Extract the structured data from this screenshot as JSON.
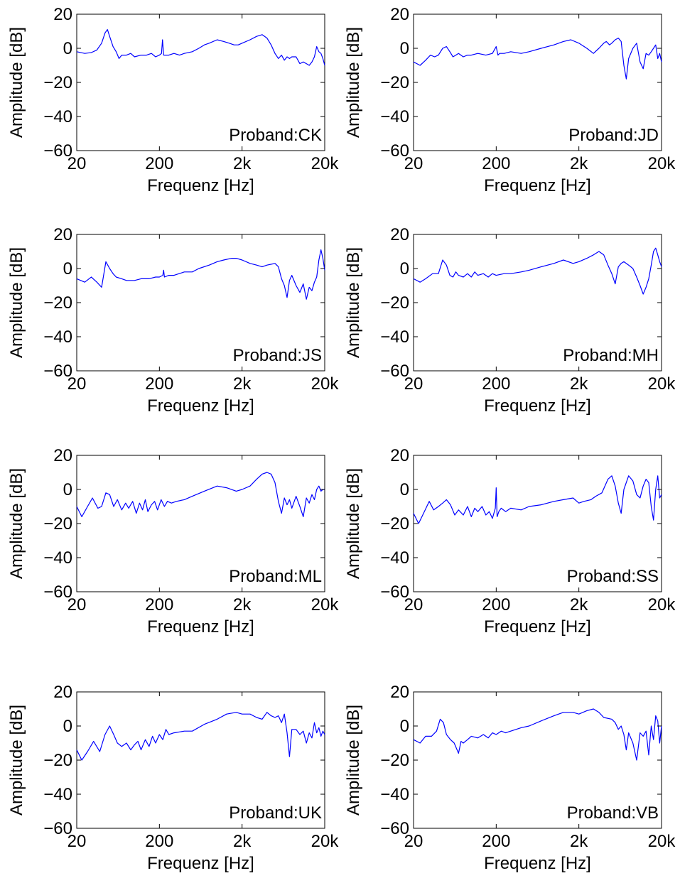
{
  "figure": {
    "line_color": "#0000ff",
    "axes_color": "#000000"
  },
  "chart_data": [
    {
      "type": "line",
      "annotation": "Proband:CK",
      "xlabel": "Frequenz [Hz]",
      "ylabel": "Amplitude [dB]",
      "xscale": "log",
      "xlim": [
        20,
        20000
      ],
      "ylim": [
        -60,
        20
      ],
      "xticks": [
        20,
        200,
        2000,
        20000
      ],
      "xticklabels": [
        "20",
        "200",
        "2k",
        "20k"
      ],
      "yticks": [
        20,
        0,
        -20,
        -40,
        -60
      ],
      "yticklabels": [
        "20",
        "0",
        "−20",
        "−40",
        "−60"
      ],
      "grid": false,
      "x": [
        20,
        25,
        30,
        35,
        40,
        44,
        47,
        50,
        55,
        60,
        65,
        70,
        80,
        90,
        100,
        120,
        140,
        160,
        180,
        200,
        212,
        218,
        225,
        260,
        300,
        350,
        400,
        500,
        600,
        700,
        800,
        1000,
        1200,
        1400,
        1600,
        1800,
        2000,
        2500,
        3000,
        3500,
        4000,
        4500,
        5000,
        5500,
        6000,
        6500,
        7000,
        7500,
        8000,
        9000,
        10000,
        11000,
        12000,
        13000,
        14000,
        15000,
        16000,
        17000,
        18000,
        19000,
        20000
      ],
      "y": [
        -2,
        -3,
        -2.5,
        -1,
        3,
        9,
        11,
        7,
        1,
        -2,
        -6,
        -4,
        -4,
        -3,
        -5,
        -4,
        -4,
        -3,
        -5,
        -4,
        -3,
        5,
        -4,
        -4,
        -3,
        -4,
        -3,
        -2,
        0,
        2,
        3,
        5,
        4,
        3,
        2,
        2,
        3,
        5,
        7,
        8,
        6,
        2,
        -3,
        -6,
        -4,
        -7,
        -5,
        -6,
        -5,
        -5,
        -9,
        -8,
        -9,
        -10,
        -8,
        -5,
        1,
        -2,
        -3,
        -6,
        -10
      ]
    },
    {
      "type": "line",
      "annotation": "Proband:JD",
      "xlabel": "Frequenz [Hz]",
      "ylabel": "Amplitude [dB]",
      "xscale": "log",
      "xlim": [
        20,
        20000
      ],
      "ylim": [
        -60,
        20
      ],
      "xticks": [
        20,
        200,
        2000,
        20000
      ],
      "xticklabels": [
        "20",
        "200",
        "2k",
        "20k"
      ],
      "yticks": [
        20,
        0,
        -20,
        -40,
        -60
      ],
      "yticklabels": [
        "20",
        "0",
        "−20",
        "−40",
        "−60"
      ],
      "grid": false,
      "x": [
        20,
        24,
        28,
        32,
        36,
        40,
        45,
        50,
        55,
        60,
        65,
        70,
        80,
        90,
        100,
        120,
        150,
        180,
        200,
        210,
        220,
        250,
        300,
        400,
        500,
        700,
        1000,
        1300,
        1600,
        2000,
        2500,
        3000,
        3500,
        4000,
        4300,
        4700,
        5000,
        5500,
        6000,
        6500,
        7000,
        7500,
        8000,
        9000,
        10000,
        11000,
        12000,
        13000,
        14000,
        15000,
        16000,
        17000,
        18000,
        19000,
        20000
      ],
      "y": [
        -8,
        -10,
        -7,
        -4,
        -5,
        -4,
        0,
        1,
        -2,
        -5,
        -4,
        -3,
        -5,
        -4,
        -4,
        -3,
        -4,
        -3,
        1,
        -4,
        -3,
        -3,
        -2,
        -3,
        -2,
        0,
        2,
        4,
        5,
        3,
        0,
        -3,
        0,
        3,
        4,
        2,
        3,
        5,
        6,
        4,
        -10,
        -18,
        -6,
        0,
        3,
        -8,
        -12,
        -3,
        -4,
        -2,
        0,
        2,
        -6,
        -3,
        -8
      ]
    },
    {
      "type": "line",
      "annotation": "Proband:JS",
      "xlabel": "Frequenz [Hz]",
      "ylabel": "Amplitude [dB]",
      "xscale": "log",
      "xlim": [
        20,
        20000
      ],
      "ylim": [
        -60,
        20
      ],
      "xticks": [
        20,
        200,
        2000,
        20000
      ],
      "xticklabels": [
        "20",
        "200",
        "2k",
        "20k"
      ],
      "yticks": [
        20,
        0,
        -20,
        -40,
        -60
      ],
      "yticklabels": [
        "20",
        "0",
        "−20",
        "−40",
        "−60"
      ],
      "grid": false,
      "x": [
        20,
        25,
        30,
        35,
        40,
        45,
        50,
        55,
        60,
        70,
        80,
        100,
        120,
        150,
        180,
        200,
        220,
        225,
        230,
        260,
        300,
        400,
        500,
        600,
        800,
        1000,
        1200,
        1500,
        1700,
        2000,
        2500,
        3000,
        3500,
        4000,
        5000,
        5500,
        6000,
        6500,
        7000,
        7500,
        8000,
        9000,
        10000,
        11000,
        12000,
        13000,
        14000,
        15000,
        16000,
        17000,
        18000,
        19000,
        20000
      ],
      "y": [
        -6,
        -8,
        -5,
        -8,
        -11,
        4,
        0,
        -3,
        -5,
        -6,
        -7,
        -7,
        -6,
        -6,
        -5,
        -5,
        -4,
        -1,
        -5,
        -4,
        -4,
        -2,
        -2,
        0,
        2,
        4,
        5,
        6,
        6,
        5,
        3,
        2,
        1,
        2,
        3,
        1,
        -6,
        -10,
        -17,
        -7,
        -4,
        -10,
        -14,
        -9,
        -18,
        -11,
        -13,
        -8,
        -5,
        5,
        11,
        6,
        -1
      ]
    },
    {
      "type": "line",
      "annotation": "Proband:MH",
      "xlabel": "Frequenz [Hz]",
      "ylabel": "Amplitude [dB]",
      "xscale": "log",
      "xlim": [
        20,
        20000
      ],
      "ylim": [
        -60,
        20
      ],
      "xticks": [
        20,
        200,
        2000,
        20000
      ],
      "xticklabels": [
        "20",
        "200",
        "2k",
        "20k"
      ],
      "yticks": [
        20,
        0,
        -20,
        -40,
        -60
      ],
      "yticklabels": [
        "20",
        "0",
        "−20",
        "−40",
        "−60"
      ],
      "grid": false,
      "x": [
        20,
        24,
        28,
        34,
        40,
        45,
        50,
        55,
        60,
        65,
        70,
        80,
        90,
        100,
        110,
        120,
        140,
        160,
        180,
        200,
        250,
        300,
        400,
        500,
        700,
        1000,
        1300,
        1700,
        2000,
        2500,
        3000,
        3500,
        4000,
        4500,
        5000,
        5500,
        6000,
        6500,
        7000,
        8000,
        9000,
        10000,
        11000,
        12000,
        13000,
        14000,
        15000,
        16000,
        17000,
        18000,
        19000,
        20000
      ],
      "y": [
        -6,
        -8,
        -6,
        -3,
        -3,
        5,
        2,
        -4,
        -5,
        -2,
        -4,
        -5,
        -3,
        -5,
        -2,
        -4,
        -3,
        -5,
        -3,
        -4,
        -3,
        -3,
        -2,
        -1,
        1,
        3,
        5,
        3,
        4,
        6,
        8,
        10,
        8,
        2,
        -3,
        -9,
        1,
        3,
        4,
        2,
        0,
        -5,
        -10,
        -15,
        -11,
        -6,
        2,
        10,
        12,
        8,
        4,
        1
      ]
    },
    {
      "type": "line",
      "annotation": "Proband:ML",
      "xlabel": "Frequenz [Hz]",
      "ylabel": "Amplitude [dB]",
      "xscale": "log",
      "xlim": [
        20,
        20000
      ],
      "ylim": [
        -60,
        20
      ],
      "xticks": [
        20,
        200,
        2000,
        20000
      ],
      "xticklabels": [
        "20",
        "200",
        "2k",
        "20k"
      ],
      "yticks": [
        20,
        0,
        -20,
        -40,
        -60
      ],
      "yticklabels": [
        "20",
        "0",
        "−20",
        "−40",
        "−60"
      ],
      "grid": false,
      "x": [
        20,
        23,
        27,
        31,
        36,
        40,
        45,
        50,
        56,
        62,
        70,
        78,
        85,
        95,
        105,
        115,
        125,
        135,
        145,
        160,
        175,
        190,
        210,
        230,
        250,
        280,
        320,
        400,
        500,
        700,
        1000,
        1300,
        1700,
        2000,
        2500,
        3000,
        3500,
        4000,
        4500,
        5000,
        5500,
        6000,
        6500,
        7000,
        7500,
        8000,
        9000,
        10000,
        11000,
        12000,
        13000,
        14000,
        15000,
        16000,
        17000,
        18000,
        19000,
        20000
      ],
      "y": [
        -10,
        -16,
        -10,
        -5,
        -11,
        -10,
        -2,
        -3,
        -10,
        -6,
        -12,
        -8,
        -11,
        -7,
        -14,
        -8,
        -12,
        -6,
        -13,
        -9,
        -7,
        -12,
        -6,
        -10,
        -7,
        -8,
        -7,
        -6,
        -4,
        -1,
        2,
        1,
        -1,
        0,
        2,
        6,
        9,
        10,
        9,
        4,
        -7,
        -14,
        -5,
        -9,
        -6,
        -11,
        -4,
        -10,
        -16,
        -5,
        -8,
        -3,
        -6,
        0,
        2,
        -1,
        0,
        0
      ]
    },
    {
      "type": "line",
      "annotation": "Proband:SS",
      "xlabel": "Frequenz [Hz]",
      "ylabel": "Amplitude [dB]",
      "xscale": "log",
      "xlim": [
        20,
        20000
      ],
      "ylim": [
        -60,
        20
      ],
      "xticks": [
        20,
        200,
        2000,
        20000
      ],
      "xticklabels": [
        "20",
        "200",
        "2k",
        "20k"
      ],
      "yticks": [
        20,
        0,
        -20,
        -40,
        -60
      ],
      "yticklabels": [
        "20",
        "0",
        "−20",
        "−40",
        "−60"
      ],
      "grid": false,
      "x": [
        20,
        23,
        27,
        31,
        35,
        40,
        45,
        50,
        56,
        63,
        70,
        80,
        90,
        100,
        110,
        120,
        135,
        150,
        165,
        180,
        195,
        200,
        205,
        215,
        230,
        260,
        300,
        400,
        500,
        700,
        1000,
        1300,
        1700,
        2000,
        2300,
        2800,
        3200,
        3800,
        4500,
        5000,
        5500,
        6000,
        6500,
        7000,
        8000,
        9000,
        10000,
        11000,
        12000,
        13000,
        14000,
        15000,
        16000,
        17000,
        18000,
        19000,
        20000
      ],
      "y": [
        -14,
        -20,
        -13,
        -7,
        -12,
        -10,
        -8,
        -6,
        -9,
        -15,
        -12,
        -15,
        -10,
        -16,
        -11,
        -13,
        -10,
        -15,
        -13,
        -17,
        -11,
        1,
        -16,
        -13,
        -11,
        -13,
        -11,
        -12,
        -10,
        -9,
        -7,
        -6,
        -5,
        -8,
        -7,
        -6,
        -4,
        -2,
        6,
        8,
        2,
        -8,
        -14,
        0,
        8,
        5,
        -3,
        -5,
        2,
        6,
        4,
        -10,
        -18,
        0,
        8,
        -5,
        -3
      ]
    },
    {
      "type": "line",
      "annotation": "Proband:UK",
      "xlabel": "Frequenz [Hz]",
      "ylabel": "Amplitude [dB]",
      "xscale": "log",
      "xlim": [
        20,
        20000
      ],
      "ylim": [
        -60,
        20
      ],
      "xticks": [
        20,
        200,
        2000,
        20000
      ],
      "xticklabels": [
        "20",
        "200",
        "2k",
        "20k"
      ],
      "yticks": [
        20,
        0,
        -20,
        -40,
        -60
      ],
      "yticklabels": [
        "20",
        "0",
        "−20",
        "−40",
        "−60"
      ],
      "grid": false,
      "x": [
        20,
        23,
        27,
        32,
        38,
        44,
        50,
        56,
        62,
        70,
        80,
        90,
        100,
        110,
        120,
        135,
        150,
        165,
        180,
        200,
        220,
        240,
        260,
        300,
        400,
        500,
        700,
        1000,
        1300,
        1700,
        2000,
        2500,
        3000,
        3500,
        4000,
        4500,
        5000,
        5500,
        6000,
        6500,
        7000,
        7500,
        8000,
        9000,
        10000,
        11000,
        12000,
        13000,
        14000,
        15000,
        16000,
        17000,
        18000,
        19000,
        20000
      ],
      "y": [
        -14,
        -20,
        -15,
        -9,
        -15,
        -5,
        0,
        -5,
        -10,
        -12,
        -10,
        -14,
        -11,
        -9,
        -14,
        -8,
        -12,
        -6,
        -10,
        -5,
        -8,
        -2,
        -5,
        -4,
        -3,
        -3,
        1,
        4,
        7,
        8,
        7,
        7,
        5,
        4,
        8,
        6,
        5,
        6,
        2,
        7,
        -4,
        -18,
        -2,
        -2,
        -5,
        -3,
        -10,
        -4,
        -7,
        2,
        -4,
        -1,
        -6,
        -3,
        -5
      ]
    },
    {
      "type": "line",
      "annotation": "Proband:VB",
      "xlabel": "Frequenz [Hz]",
      "ylabel": "Amplitude [dB]",
      "xscale": "log",
      "xlim": [
        20,
        20000
      ],
      "ylim": [
        -60,
        20
      ],
      "xticks": [
        20,
        200,
        2000,
        20000
      ],
      "xticklabels": [
        "20",
        "200",
        "2k",
        "20k"
      ],
      "yticks": [
        20,
        0,
        -20,
        -40,
        -60
      ],
      "yticklabels": [
        "20",
        "0",
        "−20",
        "−40",
        "−60"
      ],
      "grid": false,
      "x": [
        20,
        24,
        28,
        33,
        38,
        42,
        46,
        50,
        56,
        62,
        70,
        75,
        80,
        90,
        100,
        120,
        140,
        160,
        180,
        200,
        230,
        260,
        300,
        400,
        500,
        700,
        1000,
        1300,
        1700,
        2000,
        2500,
        3000,
        3500,
        4000,
        5000,
        5500,
        6000,
        6500,
        7000,
        7500,
        8000,
        9000,
        10000,
        11000,
        12000,
        13000,
        14000,
        15000,
        16000,
        17000,
        18000,
        19000,
        20000
      ],
      "y": [
        -8,
        -10,
        -6,
        -6,
        -3,
        4,
        2,
        -5,
        -8,
        -10,
        -16,
        -9,
        -10,
        -8,
        -6,
        -7,
        -5,
        -7,
        -4,
        -5,
        -3,
        -4,
        -3,
        -1,
        0,
        3,
        6,
        8,
        8,
        7,
        9,
        10,
        8,
        5,
        4,
        2,
        -2,
        0,
        -5,
        -14,
        -4,
        -10,
        -20,
        -4,
        -6,
        -3,
        -17,
        0,
        -8,
        6,
        3,
        -10,
        0
      ]
    }
  ]
}
